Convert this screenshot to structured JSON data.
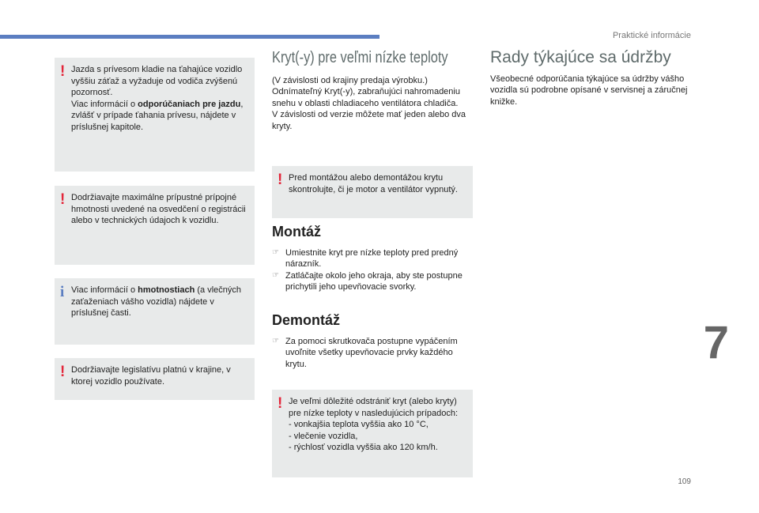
{
  "header": "Praktické informácie",
  "chapter": "7",
  "page_number": "109",
  "left_notes": [
    {
      "type": "warning",
      "segments": [
        {
          "t": "Jazda s prívesom kladie na ťahajúce vozidlo vyššiu záťaž a vyžaduje od vodiča zvýšenú pozornosť."
        },
        {
          "t": "\nViac informácií o "
        },
        {
          "t": "odporúčaniach pre jazdu",
          "bold": true
        },
        {
          "t": ", zvlášť v prípade ťahania prívesu, nájdete v príslušnej kapitole."
        }
      ]
    },
    {
      "type": "warning",
      "segments": [
        {
          "t": "Dodržiavajte maximálne prípustné prípojné hmotnosti uvedené na osvedčení o registrácii alebo v technických údajoch k vozidlu."
        }
      ]
    },
    {
      "type": "info",
      "segments": [
        {
          "t": "Viac informácií o "
        },
        {
          "t": "hmotnostiach",
          "bold": true
        },
        {
          "t": " (a vlečných zaťaženiach vášho vozidla) nájdete v príslušnej časti."
        }
      ]
    },
    {
      "type": "warning",
      "segments": [
        {
          "t": "Dodržiavajte legislatívu platnú v krajine, v ktorej vozidlo používate."
        }
      ]
    }
  ],
  "middle": {
    "title": "Kryt(-y) pre veľmi nízke teploty",
    "intro": "(V závislosti od krajiny predaja výrobku.)\nOdnímateľný Kryt(-y), zabraňujúci nahromadeniu snehu v oblasti chladiaceho ventilátora chladiča.\nV závislosti od verzie môžete mať jeden alebo dva kryty.",
    "warning1": "Pred montážou alebo demontážou krytu skontrolujte, či je motor a ventilátor vypnutý.",
    "mount_title": "Montáž",
    "mount_steps": [
      "Umiestnite kryt pre nízke teploty pred predný nárazník.",
      "Zatláčajte okolo jeho okraja, aby ste postupne prichytili jeho upevňovacie svorky."
    ],
    "dismount_title": "Demontáž",
    "dismount_steps": [
      "Za pomoci skrutkovača postupne vypáčením uvoľnite všetky upevňovacie prvky každého krytu."
    ],
    "warning2": "Je veľmi dôležité odstrániť kryt (alebo kryty) pre nízke teploty v nasledujúcich prípadoch:\n-   vonkajšia teplota vyššia ako 10 °C,\n-   vlečenie vozidla,\n-   rýchlosť vozidla vyššia ako 120 km/h."
  },
  "right": {
    "title": "Rady týkajúce sa údržby",
    "text": "Všeobecné odporúčania týkajúce sa údržby vášho vozidla sú podrobne opísané v servisnej a záručnej knižke."
  },
  "colors": {
    "warning": "#e3263a",
    "info": "#5b7ec1",
    "note_bg": "#e8eaea"
  }
}
